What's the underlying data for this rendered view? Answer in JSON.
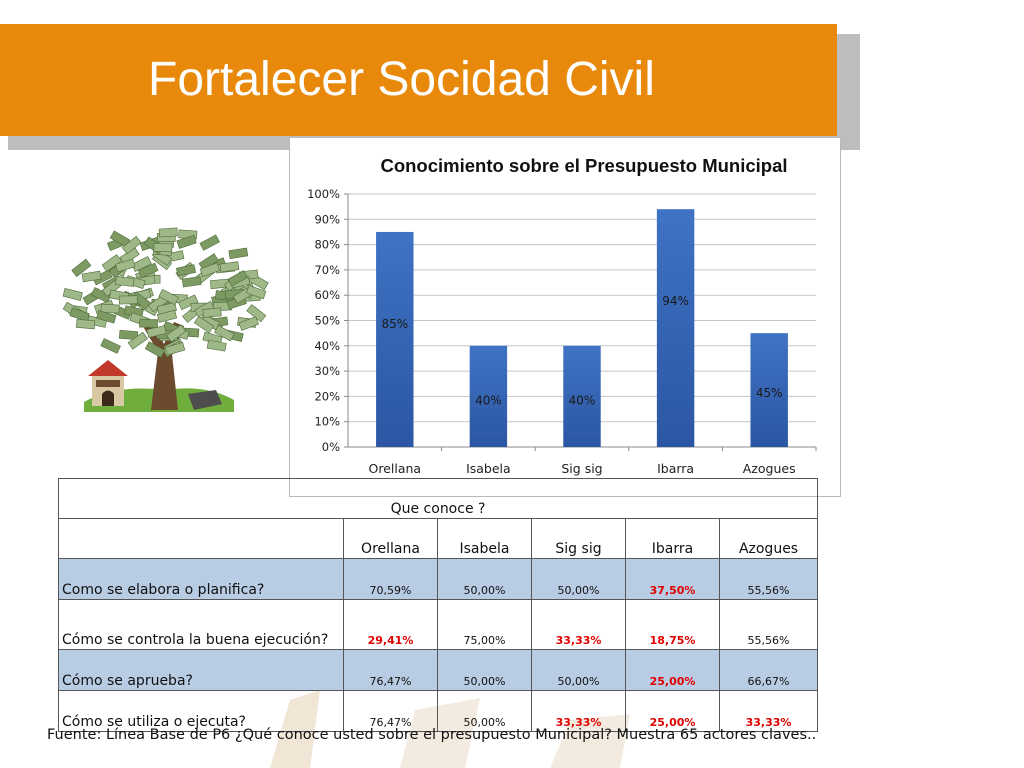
{
  "slide": {
    "title": "Fortalecer Socidad Civil",
    "accent_color": "#E8890C",
    "illustration": "money-tree-icon"
  },
  "chart_data": {
    "type": "bar",
    "title": "Conocimiento sobre el Presupuesto Municipal",
    "categories": [
      "Orellana",
      "Isabela",
      "Sig sig",
      "Ibarra",
      "Azogues"
    ],
    "values": [
      85,
      40,
      40,
      94,
      45
    ],
    "data_labels": [
      "85%",
      "40%",
      "40%",
      "94%",
      "45%"
    ],
    "ylim": [
      0,
      100
    ],
    "yticks": [
      "0%",
      "10%",
      "20%",
      "30%",
      "40%",
      "50%",
      "60%",
      "70%",
      "80%",
      "90%",
      "100%"
    ],
    "grid": true,
    "legend": "none",
    "bar_color": "#3F73C4"
  },
  "table": {
    "group_header": "Que conoce ?",
    "columns": [
      "Orellana",
      "Isabela",
      "Sig sig",
      "Ibarra",
      "Azogues"
    ],
    "rows": [
      {
        "label": "Como se elabora o planifica?",
        "values": [
          "70,59%",
          "50,00%",
          "50,00%",
          "37,50%",
          "55,56%"
        ],
        "highlight": [
          false,
          false,
          false,
          true,
          false
        ]
      },
      {
        "label": "Cómo se controla la buena ejecución?",
        "values": [
          "29,41%",
          "75,00%",
          "33,33%",
          "18,75%",
          "55,56%"
        ],
        "highlight": [
          true,
          false,
          true,
          true,
          false
        ]
      },
      {
        "label": "Cómo se aprueba?",
        "values": [
          "76,47%",
          "50,00%",
          "50,00%",
          "25,00%",
          "66,67%"
        ],
        "highlight": [
          false,
          false,
          false,
          true,
          false
        ]
      },
      {
        "label": "Cómo se utiliza o ejecuta?",
        "values": [
          "76,47%",
          "50,00%",
          "33,33%",
          "25,00%",
          "33,33%"
        ],
        "highlight": [
          false,
          false,
          true,
          true,
          true
        ]
      }
    ],
    "shaded_row_color": "#B8CCE4",
    "highlight_color": "#e00000"
  },
  "footnote": "Fuente: Línea Base de P6 ¿Qué conoce usted sobre el presupuesto Municipal?  Muestra 65 actores claves.."
}
